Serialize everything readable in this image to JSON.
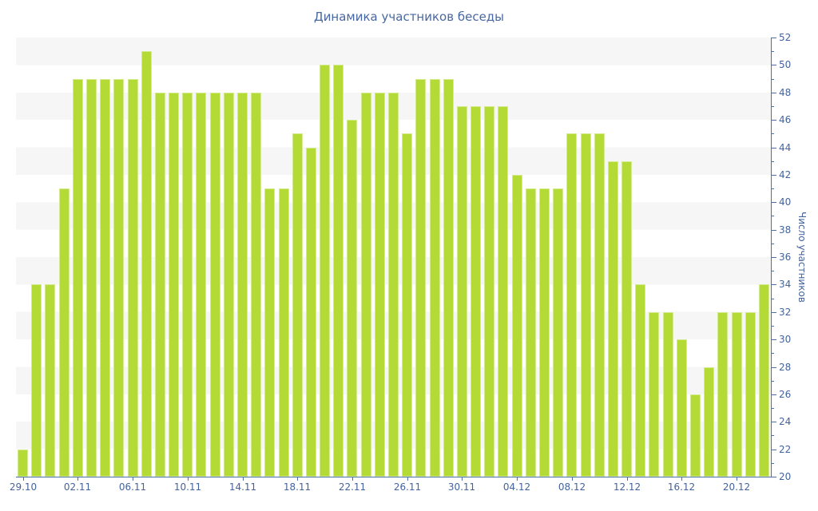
{
  "chart_data": {
    "type": "bar",
    "title": "Динамика участников беседы",
    "ylabel": "Число участников",
    "xlabel": "",
    "ylim": [
      20,
      52
    ],
    "y_tick_step": 2,
    "y_minor_tick_step": 1,
    "grid": "alternating-horizontal-stripes",
    "legend": null,
    "axis_side": "right",
    "categories": [
      "29.10",
      "30.10",
      "31.10",
      "01.11",
      "02.11",
      "03.11",
      "04.11",
      "05.11",
      "06.11",
      "07.11",
      "08.11",
      "09.11",
      "10.11",
      "11.11",
      "12.11",
      "13.11",
      "14.11",
      "15.11",
      "16.11",
      "17.11",
      "18.11",
      "19.11",
      "20.11",
      "21.11",
      "22.11",
      "23.11",
      "24.11",
      "25.11",
      "26.11",
      "27.11",
      "28.11",
      "29.11",
      "30.11",
      "01.12",
      "02.12",
      "03.12",
      "04.12",
      "05.12",
      "06.12",
      "07.12",
      "08.12",
      "09.12",
      "10.12",
      "11.12",
      "12.12",
      "13.12",
      "14.12",
      "15.12",
      "16.12",
      "17.12",
      "18.12",
      "19.12",
      "20.12",
      "21.12",
      "22.12"
    ],
    "values": [
      22,
      34,
      34,
      41,
      49,
      49,
      49,
      49,
      49,
      51,
      48,
      48,
      48,
      48,
      48,
      48,
      48,
      48,
      41,
      41,
      45,
      44,
      50,
      50,
      46,
      48,
      48,
      48,
      45,
      49,
      49,
      49,
      47,
      47,
      47,
      47,
      42,
      41,
      41,
      41,
      45,
      45,
      45,
      43,
      43,
      34,
      32,
      32,
      30,
      26,
      28,
      32,
      32,
      32,
      34
    ],
    "x_labeled_ticks": [
      "29.10",
      "02.11",
      "06.11",
      "10.11",
      "14.11",
      "18.11",
      "22.11",
      "26.11",
      "30.11",
      "04.12",
      "08.12",
      "12.12",
      "16.12",
      "20.12"
    ],
    "x_label_every": 4
  },
  "colors": {
    "bar_fill": "#b3da35",
    "title_text": "#4868a1",
    "axis_text": "#44639c",
    "axis_line": "#4d6fa8",
    "stripe_gray": "#f6f6f7",
    "stripe_white": "#ffffff",
    "background": "#ffffff"
  }
}
